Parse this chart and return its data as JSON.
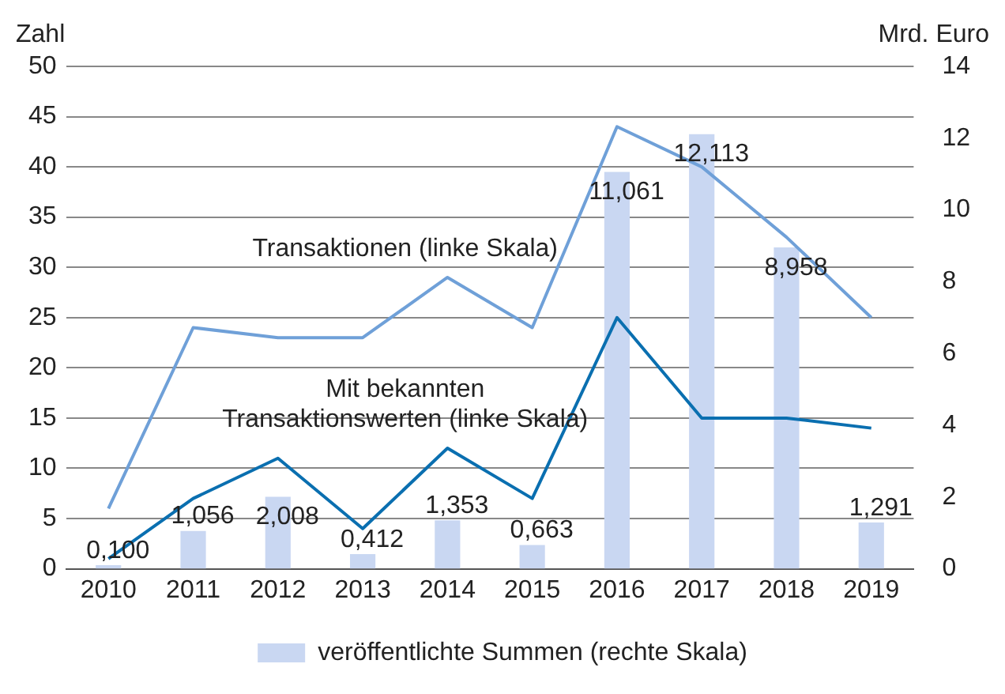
{
  "chart_data": {
    "type": "line",
    "categories": [
      "2010",
      "2011",
      "2012",
      "2013",
      "2014",
      "2015",
      "2016",
      "2017",
      "2018",
      "2019"
    ],
    "ylabel": "Zahl",
    "y2label": "Mrd. Euro",
    "series": [
      {
        "name": "veröffentlichte Summen (rechte Skala)",
        "type": "bar",
        "axis": "y2",
        "color": "#c9d7f2",
        "values": [
          0.1,
          1.056,
          2.008,
          0.412,
          1.353,
          0.663,
          11.061,
          12.113,
          8.958,
          1.291
        ],
        "value_labels": [
          "0,100",
          "1,056",
          "2,008",
          "0,412",
          "1,353",
          "0,663",
          "11,061",
          "12,113",
          "8,958",
          "1,291"
        ]
      },
      {
        "name": "Transaktionen (linke Skala)",
        "color": "#6fa0d8",
        "values": [
          6,
          24,
          23,
          23,
          29,
          24,
          44,
          40,
          33,
          25
        ]
      },
      {
        "name": "Mit bekannten Transaktionswerten (linke Skala)",
        "color": "#0a6fb0",
        "values": [
          1,
          7,
          11,
          4,
          12,
          7,
          25,
          15,
          15,
          14
        ]
      }
    ],
    "ylim": [
      0,
      50
    ],
    "yticks": [
      0,
      5,
      10,
      15,
      20,
      25,
      30,
      35,
      40,
      45,
      50
    ],
    "y2lim": [
      0,
      14
    ],
    "y2ticks": [
      0,
      2,
      4,
      6,
      8,
      10,
      12,
      14
    ],
    "grid": "y",
    "legend": "bottom",
    "marker": "none",
    "line_style": "solid"
  }
}
